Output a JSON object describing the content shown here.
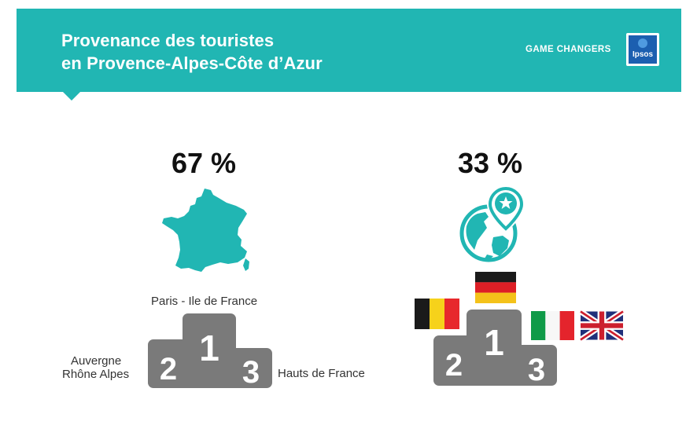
{
  "header": {
    "title_line1": "Provenance des touristes",
    "title_line2": "en Provence-Alpes-Côte d’Azur",
    "brand": "GAME CHANGERS",
    "logo_text": "Ipsos",
    "color": "#21b6b3"
  },
  "domestic": {
    "percent": "67 %",
    "icon": "france-map-icon",
    "podium": {
      "first_label": "Paris - Ile de France",
      "second_label_line1": "Auvergne",
      "second_label_line2": "Rhône Alpes",
      "third_label": "Hauts de France",
      "rank1": "1",
      "rank2": "2",
      "rank3": "3"
    }
  },
  "foreign": {
    "percent": "33 %",
    "icon": "globe-location-pin-icon",
    "podium": {
      "first": "germany-flag-icon",
      "second": "belgium-flag-icon",
      "third_a": "italy-flag-icon",
      "third_b": "uk-flag-icon",
      "rank1": "1",
      "rank2": "2",
      "rank3": "3"
    }
  },
  "colors": {
    "teal": "#21b6b3",
    "podium": "#7a7a7a"
  }
}
